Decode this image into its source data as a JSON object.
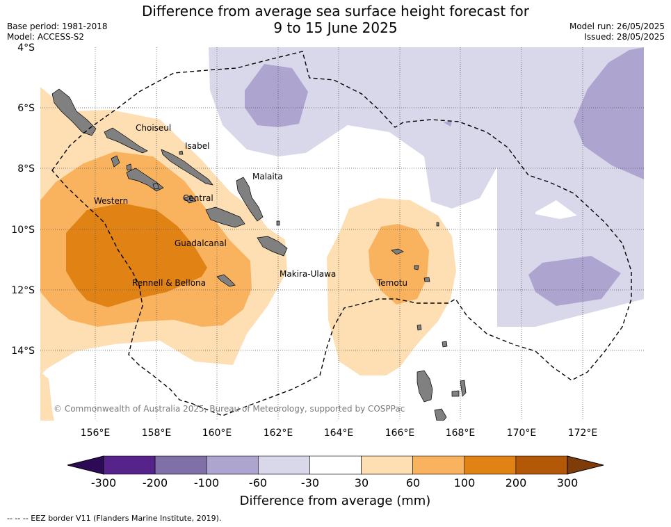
{
  "header": {
    "title_line1": "Difference from average sea surface height forecast for",
    "title_line2": "9 to 15 June 2025",
    "base_period": "Base period: 1981-2018",
    "model": "Model: ACCESS-S2",
    "model_run": "Model run: 26/05/2025",
    "issued": "Issued: 28/05/2025"
  },
  "map": {
    "lat_labels": [
      "4°S",
      "6°S",
      "8°S",
      "10°S",
      "12°S",
      "14°S"
    ],
    "lon_labels": [
      "156°E",
      "158°E",
      "160°E",
      "162°E",
      "164°E",
      "166°E",
      "168°E",
      "170°E",
      "172°E"
    ],
    "place_labels": [
      "Choiseul",
      "Isabel",
      "Malaita",
      "Western",
      "Central",
      "Guadalcanal",
      "Makira-Ulawa",
      "Rennell & Bellona",
      "Temotu"
    ],
    "copyright": "© Commonwealth of Australia 2025, Bureau of Meteorology, supported by COSPPac",
    "land_color": "#808080",
    "eez_line_color": "#000000"
  },
  "colorbar": {
    "tick_labels": [
      "-300",
      "-200",
      "-100",
      "-60",
      "-30",
      "30",
      "60",
      "100",
      "200",
      "300"
    ],
    "colors": [
      "#2d0a55",
      "#56238a",
      "#8070a8",
      "#ada5cf",
      "#d8d8ea",
      "#ffffff",
      "#fddfb3",
      "#f9b35f",
      "#e08214",
      "#b35806",
      "#7f3b08"
    ],
    "label": "Difference from average (mm)"
  },
  "legend": {
    "eez_text": "--  --  -- EEZ border V11 (Flanders Marine Institute, 2019)."
  }
}
